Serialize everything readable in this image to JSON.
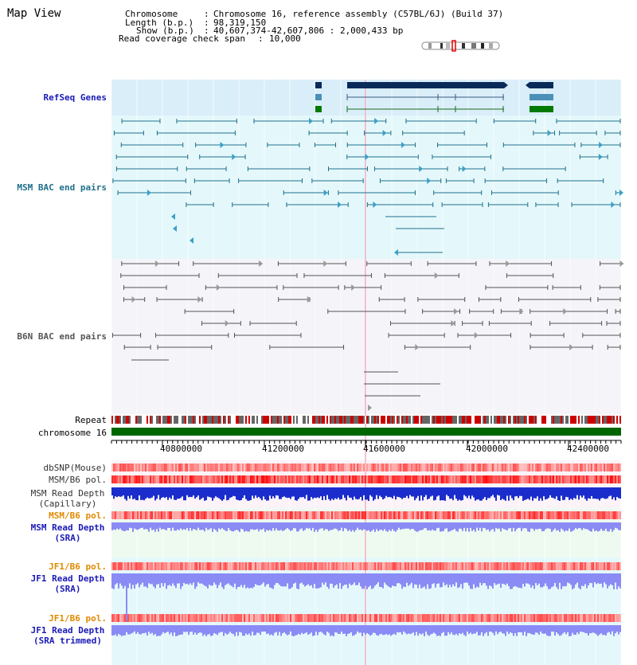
{
  "page": {
    "title": "Map View"
  },
  "header": {
    "chromosome_label": "Chromosome",
    "chromosome_value": "Chromosome 16, reference assembly (C57BL/6J) (Build 37)",
    "length_label": "Length (b.p.)",
    "length_value": "98,319,150",
    "show_label": "Show (b.p.)",
    "show_value": "40,607,374-42,607,806 : 2,000,433 bp",
    "span_label": "Read coverage check span",
    "span_value": "10,000"
  },
  "tracks": {
    "refseq": "RefSeq Genes",
    "msm_bac": "MSM BAC end pairs",
    "b6n_bac": "B6N BAC end pairs",
    "repeat": "Repeat",
    "chromosome": "chromosome 16",
    "dbsnp": "dbSNP(Mouse)",
    "msm_b6_pol": "MSM/B6 pol.",
    "msm_depth_cap_1": "MSM Read Depth",
    "msm_depth_cap_2": "(Capillary)",
    "msm_b6_pol_sra": "MSM/B6 pol.",
    "msm_depth_sra_1": "MSM Read Depth",
    "msm_depth_sra_2": "(SRA)",
    "jf1_b6_pol": "JF1/B6 pol.",
    "jf1_depth_sra_1": "JF1 Read Depth",
    "jf1_depth_sra_2": "(SRA)",
    "jf1_b6_pol_trim": "JF1/B6 pol.",
    "jf1_depth_trim_1": "JF1 Read Depth",
    "jf1_depth_trim_2": "(SRA trimmed)"
  },
  "axis": {
    "ticks": [
      "40800000",
      "41200000",
      "41600000",
      "42000000",
      "42400000"
    ]
  },
  "colors": {
    "refseq_bg": "#d9eef9",
    "msm_bg": "#e4f8fb",
    "b6n_bg": "#f4f4f9",
    "chromosome_bar": "#006600",
    "refseq_dark": "#0a2a5a",
    "msm_line": "#1f6f8b",
    "b6n_line": "#555555",
    "depth_blue": "#1a2dcc",
    "depth_light": "#8b8bf5",
    "label_blue": "#1a1ab8",
    "label_teal": "#1f6f8b",
    "label_orange": "#e08a00"
  }
}
